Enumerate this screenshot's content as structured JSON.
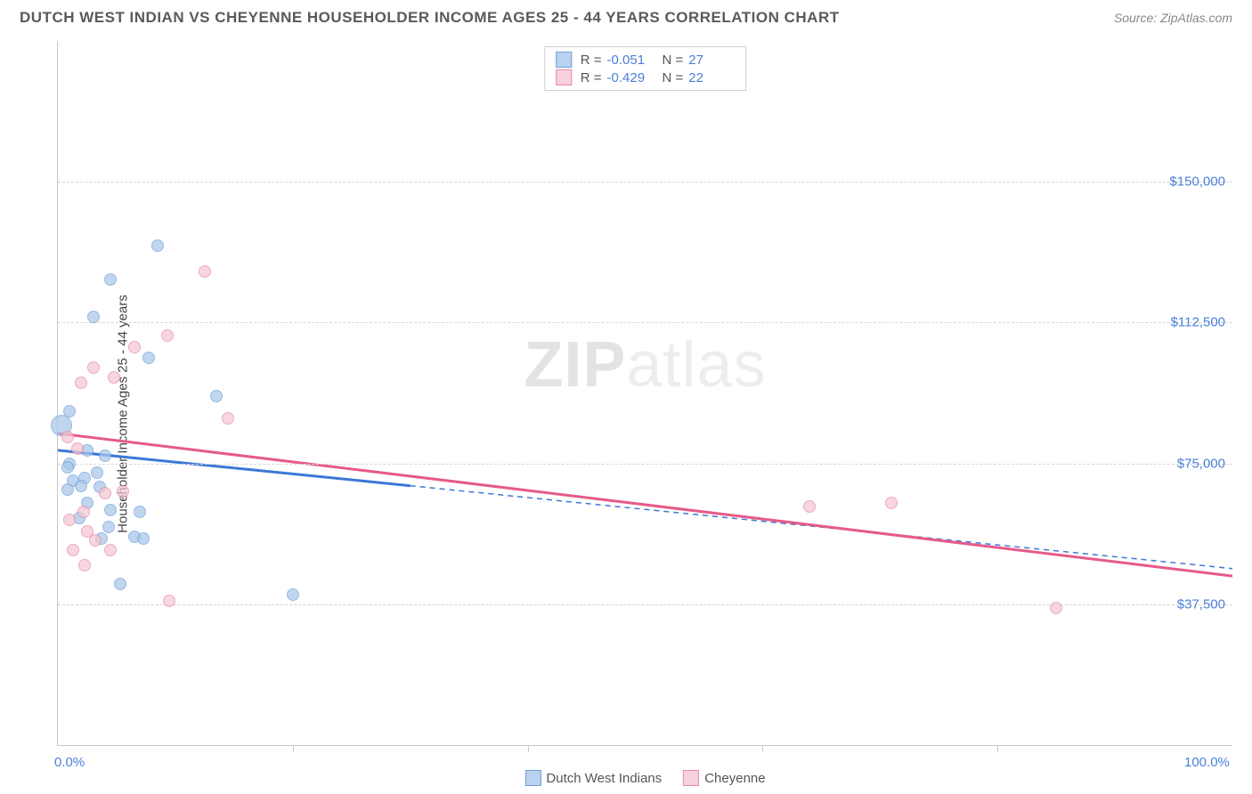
{
  "header": {
    "title": "DUTCH WEST INDIAN VS CHEYENNE HOUSEHOLDER INCOME AGES 25 - 44 YEARS CORRELATION CHART",
    "source": "Source: ZipAtlas.com"
  },
  "chart": {
    "type": "scatter",
    "ylabel": "Householder Income Ages 25 - 44 years",
    "watermark_bold": "ZIP",
    "watermark_light": "atlas",
    "background_color": "#ffffff",
    "grid_color": "#d6d6d6",
    "axis_color": "#c8c8c8",
    "xlim": [
      0,
      100
    ],
    "ylim": [
      0,
      187500
    ],
    "xticks": [
      {
        "pos": 0,
        "label": "0.0%"
      },
      {
        "pos": 100,
        "label": "100.0%"
      }
    ],
    "xminor": [
      20,
      40,
      60,
      80
    ],
    "yticks": [
      {
        "pos": 37500,
        "label": "$37,500"
      },
      {
        "pos": 75000,
        "label": "$75,000"
      },
      {
        "pos": 112500,
        "label": "$112,500"
      },
      {
        "pos": 150000,
        "label": "$150,000"
      }
    ],
    "series": [
      {
        "name": "Dutch West Indians",
        "color_fill": "#a9c7ea",
        "color_stroke": "#6fa0d9",
        "line_color": "#3b78d6",
        "swatch_fill": "#b9d2ef",
        "swatch_stroke": "#6fa0d9",
        "R": "-0.051",
        "N": "27",
        "trend": {
          "x1": 0,
          "y1": 78500,
          "x2": 100,
          "y2": 47000,
          "solid_until_x": 30
        },
        "marker_size": 14,
        "points": [
          {
            "x": 0.3,
            "y": 85000,
            "size": 24
          },
          {
            "x": 8.5,
            "y": 133000
          },
          {
            "x": 4.5,
            "y": 124000
          },
          {
            "x": 3.0,
            "y": 114000
          },
          {
            "x": 7.7,
            "y": 103000
          },
          {
            "x": 13.5,
            "y": 93000
          },
          {
            "x": 1.0,
            "y": 89000
          },
          {
            "x": 2.3,
            "y": 71000
          },
          {
            "x": 3.3,
            "y": 72500
          },
          {
            "x": 1.0,
            "y": 75000
          },
          {
            "x": 1.3,
            "y": 70500
          },
          {
            "x": 2.0,
            "y": 69000
          },
          {
            "x": 0.8,
            "y": 68000
          },
          {
            "x": 2.5,
            "y": 64500
          },
          {
            "x": 3.6,
            "y": 68800
          },
          {
            "x": 4.5,
            "y": 62500
          },
          {
            "x": 4.3,
            "y": 58000
          },
          {
            "x": 7.0,
            "y": 62000
          },
          {
            "x": 1.8,
            "y": 60500
          },
          {
            "x": 3.7,
            "y": 55000
          },
          {
            "x": 6.5,
            "y": 55500
          },
          {
            "x": 7.3,
            "y": 55000
          },
          {
            "x": 5.3,
            "y": 43000
          },
          {
            "x": 20.0,
            "y": 40000
          },
          {
            "x": 2.5,
            "y": 78500
          },
          {
            "x": 0.8,
            "y": 74000
          },
          {
            "x": 4.0,
            "y": 77000
          }
        ]
      },
      {
        "name": "Cheyenne",
        "color_fill": "#f4c7d3",
        "color_stroke": "#e88aa4",
        "line_color": "#e65a88",
        "swatch_fill": "#f7d1dc",
        "swatch_stroke": "#e88aa4",
        "R": "-0.429",
        "N": "22",
        "trend": {
          "x1": 0,
          "y1": 83000,
          "x2": 100,
          "y2": 45000,
          "solid_until_x": 100
        },
        "marker_size": 14,
        "points": [
          {
            "x": 12.5,
            "y": 126000
          },
          {
            "x": 9.3,
            "y": 109000
          },
          {
            "x": 6.5,
            "y": 106000
          },
          {
            "x": 3.0,
            "y": 100500
          },
          {
            "x": 4.8,
            "y": 98000
          },
          {
            "x": 2.0,
            "y": 96500
          },
          {
            "x": 14.5,
            "y": 87000
          },
          {
            "x": 0.8,
            "y": 82000
          },
          {
            "x": 1.7,
            "y": 79000
          },
          {
            "x": 5.5,
            "y": 67500
          },
          {
            "x": 4.0,
            "y": 67000
          },
          {
            "x": 2.2,
            "y": 62000
          },
          {
            "x": 1.0,
            "y": 60000
          },
          {
            "x": 2.5,
            "y": 57000
          },
          {
            "x": 3.2,
            "y": 54500
          },
          {
            "x": 1.3,
            "y": 52000
          },
          {
            "x": 4.5,
            "y": 52000
          },
          {
            "x": 2.3,
            "y": 48000
          },
          {
            "x": 64.0,
            "y": 63500
          },
          {
            "x": 71.0,
            "y": 64500
          },
          {
            "x": 85.0,
            "y": 36500
          },
          {
            "x": 9.5,
            "y": 38500
          }
        ]
      }
    ],
    "bottom_legend_label_1": "Dutch West Indians",
    "bottom_legend_label_2": "Cheyenne"
  }
}
